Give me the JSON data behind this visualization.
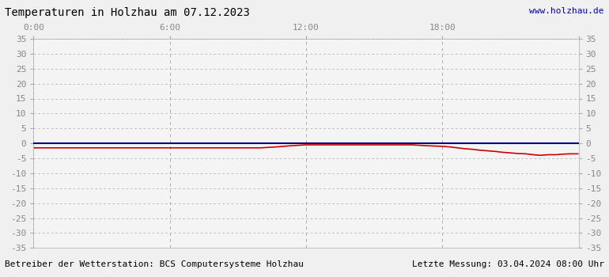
{
  "title": "Temperaturen in Holzhau am 07.12.2023",
  "url_text": "www.holzhau.de",
  "footer_left": "Betreiber der Wetterstation: BCS Computersysteme Holzhau",
  "footer_right": "Letzte Messung: 03.04.2024 08:00 Uhr",
  "xlim": [
    0,
    1440
  ],
  "ylim": [
    -35,
    35
  ],
  "yticks": [
    -35,
    -30,
    -25,
    -20,
    -15,
    -10,
    -5,
    0,
    5,
    10,
    15,
    20,
    25,
    30,
    35
  ],
  "xtick_positions": [
    0,
    360,
    720,
    1080,
    1440
  ],
  "xtick_labels": [
    "0:00",
    "6:00",
    "12:00",
    "18:00",
    ""
  ],
  "bg_color": "#f0f0f0",
  "plot_bg_color": "#f4f4f4",
  "grid_color": "#aaaaaa",
  "title_color": "#000000",
  "url_color": "#0000cc",
  "footer_color": "#000000",
  "line1_color": "#000080",
  "line2_color": "#cc0000",
  "title_fontsize": 10,
  "footer_fontsize": 8,
  "url_fontsize": 8,
  "tick_fontsize": 8,
  "tick_color": "#888888",
  "blue_line_data_x": [
    0,
    1440
  ],
  "blue_line_data_y": [
    0.0,
    0.0
  ],
  "red_line_data_x": [
    0,
    60,
    120,
    180,
    240,
    300,
    360,
    420,
    480,
    540,
    600,
    640,
    680,
    720,
    760,
    800,
    840,
    880,
    920,
    960,
    1000,
    1040,
    1080,
    1100,
    1120,
    1140,
    1160,
    1180,
    1200,
    1220,
    1240,
    1260,
    1280,
    1300,
    1320,
    1340,
    1360,
    1380,
    1400,
    1420,
    1440
  ],
  "red_line_data_y": [
    -1.5,
    -1.5,
    -1.5,
    -1.5,
    -1.5,
    -1.5,
    -1.5,
    -1.5,
    -1.5,
    -1.5,
    -1.5,
    -1.2,
    -0.8,
    -0.5,
    -0.5,
    -0.5,
    -0.5,
    -0.5,
    -0.5,
    -0.5,
    -0.5,
    -0.8,
    -1.0,
    -1.2,
    -1.5,
    -1.8,
    -2.0,
    -2.3,
    -2.5,
    -2.7,
    -3.0,
    -3.2,
    -3.4,
    -3.5,
    -3.8,
    -4.0,
    -3.8,
    -3.8,
    -3.6,
    -3.5,
    -3.5
  ]
}
